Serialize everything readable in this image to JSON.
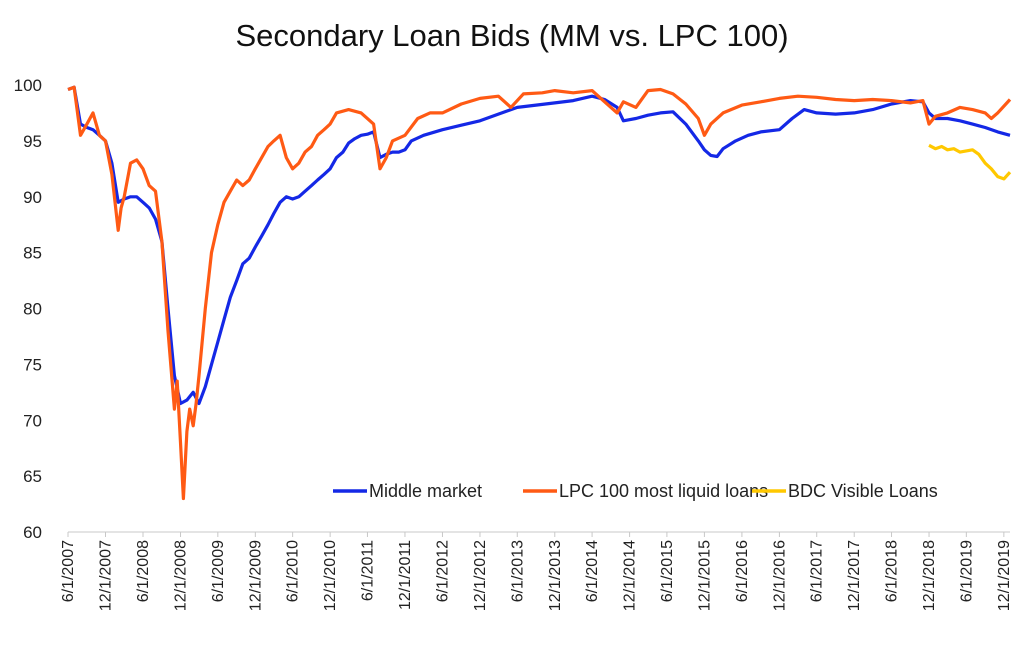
{
  "chart_data": {
    "type": "line",
    "title": "Secondary Loan Bids (MM vs. LPC 100)",
    "xlabel": "",
    "ylabel": "",
    "ylim": [
      60,
      100
    ],
    "yticks": [
      60,
      65,
      70,
      75,
      80,
      85,
      90,
      95,
      100
    ],
    "xlim": [
      "2007-06-01",
      "2019-12-31"
    ],
    "xticks": [
      "6/1/2007",
      "12/1/2007",
      "6/1/2008",
      "12/1/2008",
      "6/1/2009",
      "12/1/2009",
      "6/1/2010",
      "12/1/2010",
      "6/1/2011",
      "12/1/2011",
      "6/1/2012",
      "12/1/2012",
      "6/1/2013",
      "12/1/2013",
      "6/1/2014",
      "12/1/2014",
      "6/1/2015",
      "12/1/2015",
      "6/1/2016",
      "12/1/2016",
      "6/1/2017",
      "12/1/2017",
      "6/1/2018",
      "12/1/2018",
      "6/1/2019",
      "12/1/2019"
    ],
    "grid": false,
    "legend": "bottom-right",
    "series": [
      {
        "name": "Middle market",
        "color": "#1428e6",
        "points": [
          [
            "2007-06-01",
            99.6
          ],
          [
            "2007-07-01",
            99.8
          ],
          [
            "2007-08-01",
            96.5
          ],
          [
            "2007-09-01",
            96.2
          ],
          [
            "2007-10-01",
            96.0
          ],
          [
            "2007-11-01",
            95.5
          ],
          [
            "2007-12-01",
            95.0
          ],
          [
            "2008-01-01",
            93.0
          ],
          [
            "2008-02-01",
            89.5
          ],
          [
            "2008-03-01",
            89.8
          ],
          [
            "2008-04-01",
            90.0
          ],
          [
            "2008-05-01",
            90.0
          ],
          [
            "2008-06-01",
            89.5
          ],
          [
            "2008-07-01",
            89.0
          ],
          [
            "2008-08-01",
            88.0
          ],
          [
            "2008-09-01",
            86.0
          ],
          [
            "2008-10-01",
            80.0
          ],
          [
            "2008-11-01",
            74.0
          ],
          [
            "2008-12-01",
            71.5
          ],
          [
            "2009-01-01",
            71.8
          ],
          [
            "2009-02-01",
            72.5
          ],
          [
            "2009-03-01",
            71.5
          ],
          [
            "2009-04-01",
            73.0
          ],
          [
            "2009-05-01",
            75.0
          ],
          [
            "2009-06-01",
            77.0
          ],
          [
            "2009-07-01",
            79.0
          ],
          [
            "2009-08-01",
            81.0
          ],
          [
            "2009-09-01",
            82.5
          ],
          [
            "2009-10-01",
            84.0
          ],
          [
            "2009-11-01",
            84.5
          ],
          [
            "2009-12-01",
            85.5
          ],
          [
            "2010-01-01",
            86.5
          ],
          [
            "2010-02-01",
            87.5
          ],
          [
            "2010-03-01",
            88.5
          ],
          [
            "2010-04-01",
            89.5
          ],
          [
            "2010-05-01",
            90.0
          ],
          [
            "2010-06-01",
            89.8
          ],
          [
            "2010-07-01",
            90.0
          ],
          [
            "2010-08-01",
            90.5
          ],
          [
            "2010-09-01",
            91.0
          ],
          [
            "2010-10-01",
            91.5
          ],
          [
            "2010-11-01",
            92.0
          ],
          [
            "2010-12-01",
            92.5
          ],
          [
            "2011-01-01",
            93.5
          ],
          [
            "2011-02-01",
            94.0
          ],
          [
            "2011-03-01",
            94.8
          ],
          [
            "2011-04-01",
            95.2
          ],
          [
            "2011-05-01",
            95.5
          ],
          [
            "2011-06-01",
            95.6
          ],
          [
            "2011-07-01",
            95.8
          ],
          [
            "2011-08-01",
            93.5
          ],
          [
            "2011-09-01",
            93.8
          ],
          [
            "2011-10-01",
            94.0
          ],
          [
            "2011-11-01",
            94.0
          ],
          [
            "2011-12-01",
            94.2
          ],
          [
            "2012-01-01",
            95.0
          ],
          [
            "2012-03-01",
            95.5
          ],
          [
            "2012-06-01",
            96.0
          ],
          [
            "2012-09-01",
            96.4
          ],
          [
            "2012-12-01",
            96.8
          ],
          [
            "2013-03-01",
            97.4
          ],
          [
            "2013-06-01",
            98.0
          ],
          [
            "2013-09-01",
            98.2
          ],
          [
            "2013-12-01",
            98.4
          ],
          [
            "2014-03-01",
            98.6
          ],
          [
            "2014-06-01",
            99.0
          ],
          [
            "2014-08-01",
            98.7
          ],
          [
            "2014-10-01",
            98.0
          ],
          [
            "2014-11-01",
            96.8
          ],
          [
            "2015-01-01",
            97.0
          ],
          [
            "2015-03-01",
            97.3
          ],
          [
            "2015-05-01",
            97.5
          ],
          [
            "2015-07-01",
            97.6
          ],
          [
            "2015-09-01",
            96.5
          ],
          [
            "2015-11-01",
            95.0
          ],
          [
            "2015-12-01",
            94.2
          ],
          [
            "2016-01-01",
            93.7
          ],
          [
            "2016-02-01",
            93.6
          ],
          [
            "2016-03-01",
            94.3
          ],
          [
            "2016-05-01",
            95.0
          ],
          [
            "2016-07-01",
            95.5
          ],
          [
            "2016-09-01",
            95.8
          ],
          [
            "2016-12-01",
            96.0
          ],
          [
            "2017-02-01",
            97.0
          ],
          [
            "2017-04-01",
            97.8
          ],
          [
            "2017-06-01",
            97.5
          ],
          [
            "2017-09-01",
            97.4
          ],
          [
            "2017-12-01",
            97.5
          ],
          [
            "2018-03-01",
            97.8
          ],
          [
            "2018-06-01",
            98.3
          ],
          [
            "2018-09-01",
            98.6
          ],
          [
            "2018-11-01",
            98.5
          ],
          [
            "2018-12-01",
            97.5
          ],
          [
            "2019-01-01",
            97.0
          ],
          [
            "2019-03-01",
            97.0
          ],
          [
            "2019-05-01",
            96.8
          ],
          [
            "2019-07-01",
            96.5
          ],
          [
            "2019-09-01",
            96.2
          ],
          [
            "2019-11-01",
            95.8
          ],
          [
            "2019-12-31",
            95.5
          ]
        ]
      },
      {
        "name": "LPC 100 most liquid loans",
        "color": "#ff5a14",
        "points": [
          [
            "2007-06-01",
            99.6
          ],
          [
            "2007-07-01",
            99.8
          ],
          [
            "2007-08-01",
            95.5
          ],
          [
            "2007-09-01",
            96.5
          ],
          [
            "2007-10-01",
            97.5
          ],
          [
            "2007-11-01",
            95.5
          ],
          [
            "2007-12-01",
            95.0
          ],
          [
            "2008-01-01",
            92.0
          ],
          [
            "2008-02-01",
            87.0
          ],
          [
            "2008-02-15",
            89.0
          ],
          [
            "2008-03-01",
            90.0
          ],
          [
            "2008-04-01",
            93.0
          ],
          [
            "2008-05-01",
            93.3
          ],
          [
            "2008-06-01",
            92.5
          ],
          [
            "2008-07-01",
            91.0
          ],
          [
            "2008-08-01",
            90.5
          ],
          [
            "2008-09-01",
            86.0
          ],
          [
            "2008-10-01",
            78.0
          ],
          [
            "2008-11-01",
            71.0
          ],
          [
            "2008-11-15",
            73.5
          ],
          [
            "2008-12-01",
            68.0
          ],
          [
            "2008-12-15",
            63.0
          ],
          [
            "2009-01-01",
            69.0
          ],
          [
            "2009-01-15",
            71.0
          ],
          [
            "2009-02-01",
            69.5
          ],
          [
            "2009-02-15",
            71.5
          ],
          [
            "2009-03-01",
            74.0
          ],
          [
            "2009-04-01",
            80.0
          ],
          [
            "2009-05-01",
            85.0
          ],
          [
            "2009-06-01",
            87.5
          ],
          [
            "2009-07-01",
            89.5
          ],
          [
            "2009-08-01",
            90.5
          ],
          [
            "2009-09-01",
            91.5
          ],
          [
            "2009-10-01",
            91.0
          ],
          [
            "2009-11-01",
            91.5
          ],
          [
            "2009-12-01",
            92.5
          ],
          [
            "2010-01-01",
            93.5
          ],
          [
            "2010-02-01",
            94.5
          ],
          [
            "2010-03-01",
            95.0
          ],
          [
            "2010-04-01",
            95.5
          ],
          [
            "2010-05-01",
            93.5
          ],
          [
            "2010-06-01",
            92.5
          ],
          [
            "2010-07-01",
            93.0
          ],
          [
            "2010-08-01",
            94.0
          ],
          [
            "2010-09-01",
            94.5
          ],
          [
            "2010-10-01",
            95.5
          ],
          [
            "2010-11-01",
            96.0
          ],
          [
            "2010-12-01",
            96.5
          ],
          [
            "2011-01-01",
            97.5
          ],
          [
            "2011-03-01",
            97.8
          ],
          [
            "2011-05-01",
            97.5
          ],
          [
            "2011-07-01",
            96.5
          ],
          [
            "2011-08-01",
            92.5
          ],
          [
            "2011-09-01",
            93.5
          ],
          [
            "2011-10-01",
            95.0
          ],
          [
            "2011-12-01",
            95.5
          ],
          [
            "2012-02-01",
            97.0
          ],
          [
            "2012-04-01",
            97.5
          ],
          [
            "2012-06-01",
            97.5
          ],
          [
            "2012-09-01",
            98.3
          ],
          [
            "2012-12-01",
            98.8
          ],
          [
            "2013-03-01",
            99.0
          ],
          [
            "2013-05-01",
            98.0
          ],
          [
            "2013-07-01",
            99.2
          ],
          [
            "2013-10-01",
            99.3
          ],
          [
            "2013-12-01",
            99.5
          ],
          [
            "2014-03-01",
            99.3
          ],
          [
            "2014-06-01",
            99.5
          ],
          [
            "2014-08-01",
            98.5
          ],
          [
            "2014-10-01",
            97.5
          ],
          [
            "2014-11-01",
            98.5
          ],
          [
            "2015-01-01",
            98.0
          ],
          [
            "2015-03-01",
            99.5
          ],
          [
            "2015-05-01",
            99.6
          ],
          [
            "2015-07-01",
            99.2
          ],
          [
            "2015-09-01",
            98.3
          ],
          [
            "2015-11-01",
            97.0
          ],
          [
            "2015-12-01",
            95.5
          ],
          [
            "2016-01-01",
            96.5
          ],
          [
            "2016-03-01",
            97.5
          ],
          [
            "2016-06-01",
            98.2
          ],
          [
            "2016-09-01",
            98.5
          ],
          [
            "2016-12-01",
            98.8
          ],
          [
            "2017-03-01",
            99.0
          ],
          [
            "2017-06-01",
            98.9
          ],
          [
            "2017-09-01",
            98.7
          ],
          [
            "2017-12-01",
            98.6
          ],
          [
            "2018-03-01",
            98.7
          ],
          [
            "2018-06-01",
            98.6
          ],
          [
            "2018-09-01",
            98.4
          ],
          [
            "2018-11-01",
            98.6
          ],
          [
            "2018-12-01",
            96.5
          ],
          [
            "2019-01-01",
            97.2
          ],
          [
            "2019-03-01",
            97.5
          ],
          [
            "2019-05-01",
            98.0
          ],
          [
            "2019-07-01",
            97.8
          ],
          [
            "2019-09-01",
            97.5
          ],
          [
            "2019-10-01",
            97.0
          ],
          [
            "2019-11-01",
            97.5
          ],
          [
            "2019-12-31",
            98.7
          ]
        ]
      },
      {
        "name": "BDC Visible Loans",
        "color": "#ffc800",
        "points": [
          [
            "2018-12-01",
            94.6
          ],
          [
            "2019-01-01",
            94.3
          ],
          [
            "2019-02-01",
            94.5
          ],
          [
            "2019-03-01",
            94.2
          ],
          [
            "2019-04-01",
            94.3
          ],
          [
            "2019-05-01",
            94.0
          ],
          [
            "2019-06-01",
            94.1
          ],
          [
            "2019-07-01",
            94.2
          ],
          [
            "2019-08-01",
            93.8
          ],
          [
            "2019-09-01",
            93.0
          ],
          [
            "2019-10-01",
            92.5
          ],
          [
            "2019-11-01",
            91.8
          ],
          [
            "2019-12-01",
            91.6
          ],
          [
            "2019-12-31",
            92.2
          ]
        ]
      }
    ]
  }
}
